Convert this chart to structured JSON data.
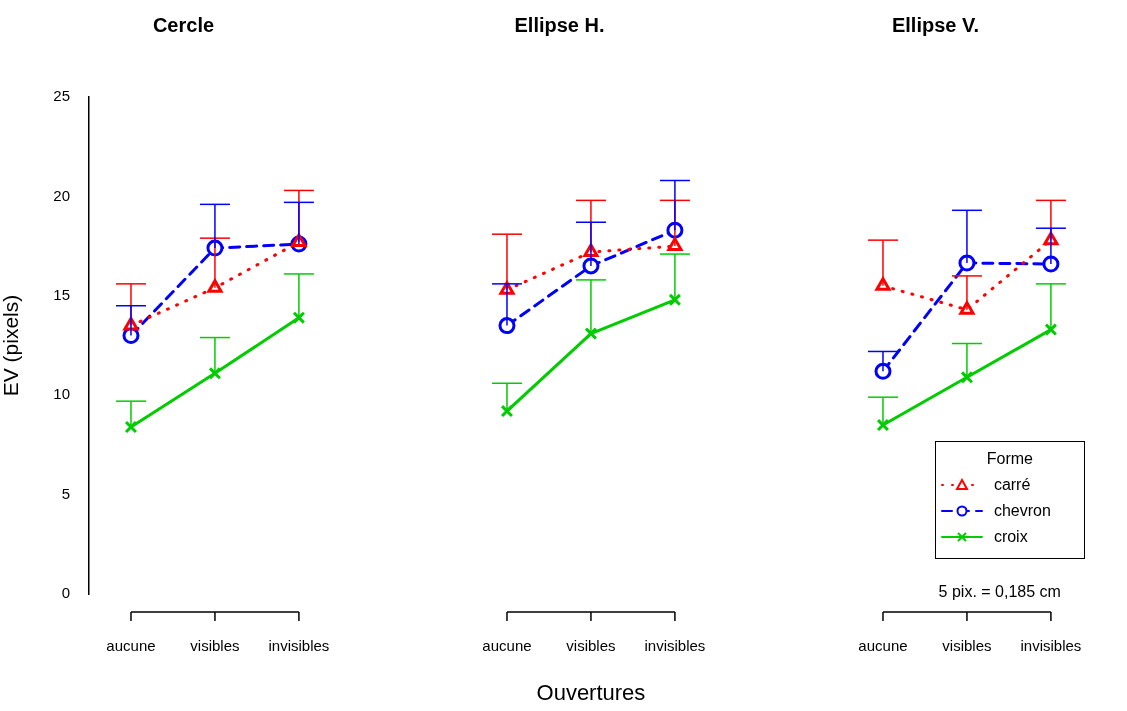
{
  "chart_data": [
    {
      "type": "line",
      "title": "Cercle",
      "ylabel": "EV (pixels)",
      "categories": [
        "aucune",
        "visibles",
        "invisibles"
      ],
      "ylim": [
        0,
        25
      ],
      "yticks": [
        0,
        5,
        10,
        15,
        20,
        25
      ],
      "grid": false,
      "series": [
        {
          "color": "#ff0000",
          "marker": "triangle",
          "line_style": "dotted",
          "values": [
            13.5,
            15.4,
            17.7
          ],
          "errors": [
            [
              13.5,
              15.6
            ],
            [
              15.4,
              17.9
            ],
            [
              17.7,
              20.3
            ]
          ]
        },
        {
          "color": "#0000ff",
          "marker": "circle",
          "line_style": "dashed",
          "values": [
            13.0,
            17.4,
            17.6
          ],
          "errors": [
            [
              13.0,
              14.5
            ],
            [
              17.4,
              19.6
            ],
            [
              17.6,
              19.7
            ]
          ]
        },
        {
          "color": "#00cd00",
          "marker": "cross",
          "line_style": "solid",
          "values": [
            8.4,
            11.1,
            13.9
          ],
          "errors": [
            [
              8.4,
              9.7
            ],
            [
              11.1,
              12.9
            ],
            [
              13.9,
              16.1
            ]
          ]
        }
      ]
    },
    {
      "type": "line",
      "title": "Ellipse H.",
      "xlabel": "Ouvertures",
      "categories": [
        "aucune",
        "visibles",
        "invisibles"
      ],
      "ylim": [
        0,
        25
      ],
      "yticks": [
        0,
        5,
        10,
        15,
        20,
        25
      ],
      "grid": false,
      "tick_labels": "x",
      "series": [
        {
          "color": "#ff0000",
          "marker": "triangle",
          "line_style": "dotted",
          "values": [
            15.3,
            17.2,
            17.5
          ],
          "errors": [
            [
              15.3,
              18.1
            ],
            [
              17.2,
              19.8
            ],
            [
              17.5,
              19.8
            ]
          ]
        },
        {
          "color": "#0000ff",
          "marker": "circle",
          "line_style": "dashed",
          "values": [
            13.5,
            16.5,
            18.3
          ],
          "errors": [
            [
              13.5,
              15.6
            ],
            [
              16.5,
              18.7
            ],
            [
              18.3,
              20.8
            ]
          ]
        },
        {
          "color": "#00cd00",
          "marker": "cross",
          "line_style": "solid",
          "values": [
            9.2,
            13.1,
            14.8
          ],
          "errors": [
            [
              9.2,
              10.6
            ],
            [
              13.1,
              15.8
            ],
            [
              14.8,
              17.1
            ]
          ]
        }
      ]
    },
    {
      "type": "line",
      "title": "Ellipse V.",
      "categories": [
        "aucune",
        "visibles",
        "invisibles"
      ],
      "ylim": [
        0,
        25
      ],
      "yticks": [
        0,
        5,
        10,
        15,
        20,
        25
      ],
      "grid": false,
      "tick_labels": "x",
      "legend": "bottom right",
      "legend_title": "Forme",
      "annotations": [
        "5 pix. = 0,185 cm"
      ],
      "series": [
        {
          "name": "carré",
          "color": "#ff0000",
          "marker": "triangle",
          "line_style": "dotted",
          "values": [
            15.5,
            14.3,
            17.8
          ],
          "errors": [
            [
              15.5,
              17.8
            ],
            [
              14.3,
              16.0
            ],
            [
              17.8,
              19.8
            ]
          ]
        },
        {
          "name": "chevron",
          "color": "#0000ff",
          "marker": "circle",
          "line_style": "dashed",
          "values": [
            11.2,
            16.65,
            16.6
          ],
          "errors": [
            [
              11.2,
              12.2
            ],
            [
              16.65,
              19.3
            ],
            [
              16.6,
              18.4
            ]
          ]
        },
        {
          "name": "croix",
          "color": "#00cd00",
          "marker": "cross",
          "line_style": "solid",
          "values": [
            8.5,
            10.9,
            13.3
          ],
          "errors": [
            [
              8.5,
              9.9
            ],
            [
              10.9,
              12.6
            ],
            [
              13.3,
              15.6
            ]
          ]
        }
      ]
    }
  ]
}
